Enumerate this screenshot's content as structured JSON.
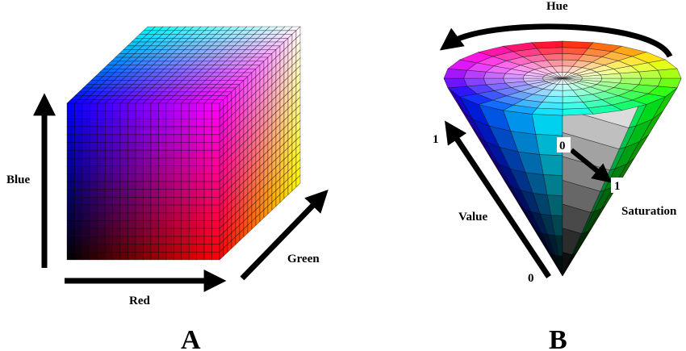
{
  "panel_a": {
    "letter": "A",
    "axes": {
      "blue": "Blue",
      "red": "Red",
      "green": "Green"
    },
    "colors": {
      "black": "#000000",
      "red": "#ff0000",
      "green": "#00ff00",
      "blue": "#0000ff",
      "yellow": "#ffff00",
      "magenta": "#ff00ff",
      "cyan": "#00ffff",
      "white": "#ffffff"
    }
  },
  "panel_b": {
    "letter": "B",
    "labels": {
      "hue": "Hue",
      "value": "Value",
      "saturation": "Saturation",
      "value_max": "1",
      "value_min": "0",
      "sat_min": "0",
      "sat_max": "1"
    },
    "hue_segments": 24,
    "rings": 6
  }
}
